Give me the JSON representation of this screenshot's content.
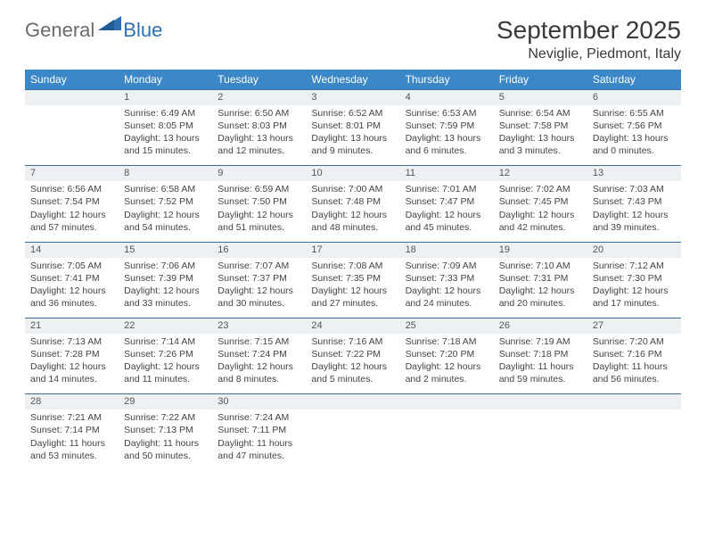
{
  "logo": {
    "part1": "General",
    "part2": "Blue"
  },
  "title": "September 2025",
  "location": "Neviglie, Piedmont, Italy",
  "header_bg": "#3b87c8",
  "daynum_bg": "#eef1f3",
  "row_border": "#3b6fa0",
  "days_of_week": [
    "Sunday",
    "Monday",
    "Tuesday",
    "Wednesday",
    "Thursday",
    "Friday",
    "Saturday"
  ],
  "weeks": [
    [
      null,
      {
        "n": "1",
        "sr": "Sunrise: 6:49 AM",
        "ss": "Sunset: 8:05 PM",
        "dl": "Daylight: 13 hours and 15 minutes."
      },
      {
        "n": "2",
        "sr": "Sunrise: 6:50 AM",
        "ss": "Sunset: 8:03 PM",
        "dl": "Daylight: 13 hours and 12 minutes."
      },
      {
        "n": "3",
        "sr": "Sunrise: 6:52 AM",
        "ss": "Sunset: 8:01 PM",
        "dl": "Daylight: 13 hours and 9 minutes."
      },
      {
        "n": "4",
        "sr": "Sunrise: 6:53 AM",
        "ss": "Sunset: 7:59 PM",
        "dl": "Daylight: 13 hours and 6 minutes."
      },
      {
        "n": "5",
        "sr": "Sunrise: 6:54 AM",
        "ss": "Sunset: 7:58 PM",
        "dl": "Daylight: 13 hours and 3 minutes."
      },
      {
        "n": "6",
        "sr": "Sunrise: 6:55 AM",
        "ss": "Sunset: 7:56 PM",
        "dl": "Daylight: 13 hours and 0 minutes."
      }
    ],
    [
      {
        "n": "7",
        "sr": "Sunrise: 6:56 AM",
        "ss": "Sunset: 7:54 PM",
        "dl": "Daylight: 12 hours and 57 minutes."
      },
      {
        "n": "8",
        "sr": "Sunrise: 6:58 AM",
        "ss": "Sunset: 7:52 PM",
        "dl": "Daylight: 12 hours and 54 minutes."
      },
      {
        "n": "9",
        "sr": "Sunrise: 6:59 AM",
        "ss": "Sunset: 7:50 PM",
        "dl": "Daylight: 12 hours and 51 minutes."
      },
      {
        "n": "10",
        "sr": "Sunrise: 7:00 AM",
        "ss": "Sunset: 7:48 PM",
        "dl": "Daylight: 12 hours and 48 minutes."
      },
      {
        "n": "11",
        "sr": "Sunrise: 7:01 AM",
        "ss": "Sunset: 7:47 PM",
        "dl": "Daylight: 12 hours and 45 minutes."
      },
      {
        "n": "12",
        "sr": "Sunrise: 7:02 AM",
        "ss": "Sunset: 7:45 PM",
        "dl": "Daylight: 12 hours and 42 minutes."
      },
      {
        "n": "13",
        "sr": "Sunrise: 7:03 AM",
        "ss": "Sunset: 7:43 PM",
        "dl": "Daylight: 12 hours and 39 minutes."
      }
    ],
    [
      {
        "n": "14",
        "sr": "Sunrise: 7:05 AM",
        "ss": "Sunset: 7:41 PM",
        "dl": "Daylight: 12 hours and 36 minutes."
      },
      {
        "n": "15",
        "sr": "Sunrise: 7:06 AM",
        "ss": "Sunset: 7:39 PM",
        "dl": "Daylight: 12 hours and 33 minutes."
      },
      {
        "n": "16",
        "sr": "Sunrise: 7:07 AM",
        "ss": "Sunset: 7:37 PM",
        "dl": "Daylight: 12 hours and 30 minutes."
      },
      {
        "n": "17",
        "sr": "Sunrise: 7:08 AM",
        "ss": "Sunset: 7:35 PM",
        "dl": "Daylight: 12 hours and 27 minutes."
      },
      {
        "n": "18",
        "sr": "Sunrise: 7:09 AM",
        "ss": "Sunset: 7:33 PM",
        "dl": "Daylight: 12 hours and 24 minutes."
      },
      {
        "n": "19",
        "sr": "Sunrise: 7:10 AM",
        "ss": "Sunset: 7:31 PM",
        "dl": "Daylight: 12 hours and 20 minutes."
      },
      {
        "n": "20",
        "sr": "Sunrise: 7:12 AM",
        "ss": "Sunset: 7:30 PM",
        "dl": "Daylight: 12 hours and 17 minutes."
      }
    ],
    [
      {
        "n": "21",
        "sr": "Sunrise: 7:13 AM",
        "ss": "Sunset: 7:28 PM",
        "dl": "Daylight: 12 hours and 14 minutes."
      },
      {
        "n": "22",
        "sr": "Sunrise: 7:14 AM",
        "ss": "Sunset: 7:26 PM",
        "dl": "Daylight: 12 hours and 11 minutes."
      },
      {
        "n": "23",
        "sr": "Sunrise: 7:15 AM",
        "ss": "Sunset: 7:24 PM",
        "dl": "Daylight: 12 hours and 8 minutes."
      },
      {
        "n": "24",
        "sr": "Sunrise: 7:16 AM",
        "ss": "Sunset: 7:22 PM",
        "dl": "Daylight: 12 hours and 5 minutes."
      },
      {
        "n": "25",
        "sr": "Sunrise: 7:18 AM",
        "ss": "Sunset: 7:20 PM",
        "dl": "Daylight: 12 hours and 2 minutes."
      },
      {
        "n": "26",
        "sr": "Sunrise: 7:19 AM",
        "ss": "Sunset: 7:18 PM",
        "dl": "Daylight: 11 hours and 59 minutes."
      },
      {
        "n": "27",
        "sr": "Sunrise: 7:20 AM",
        "ss": "Sunset: 7:16 PM",
        "dl": "Daylight: 11 hours and 56 minutes."
      }
    ],
    [
      {
        "n": "28",
        "sr": "Sunrise: 7:21 AM",
        "ss": "Sunset: 7:14 PM",
        "dl": "Daylight: 11 hours and 53 minutes."
      },
      {
        "n": "29",
        "sr": "Sunrise: 7:22 AM",
        "ss": "Sunset: 7:13 PM",
        "dl": "Daylight: 11 hours and 50 minutes."
      },
      {
        "n": "30",
        "sr": "Sunrise: 7:24 AM",
        "ss": "Sunset: 7:11 PM",
        "dl": "Daylight: 11 hours and 47 minutes."
      },
      null,
      null,
      null,
      null
    ]
  ]
}
